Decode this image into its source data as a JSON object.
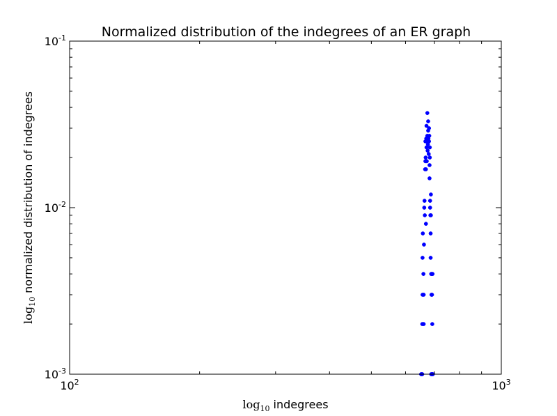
{
  "chart_data": {
    "type": "scatter",
    "title": "Normalized distribution of the indegrees of an ER graph",
    "xlabel": {
      "prefix": "log",
      "subscript": "10",
      "text": " indegrees"
    },
    "ylabel": {
      "prefix": "log",
      "subscript": "10",
      "text": " normalized distribution of indegrees"
    },
    "xscale": "log",
    "yscale": "log",
    "xlim": [
      100,
      1000
    ],
    "ylim": [
      0.001,
      0.1
    ],
    "xticks": [
      {
        "value": 100,
        "base": "10",
        "exp": "2"
      },
      {
        "value": 1000,
        "base": "10",
        "exp": "3"
      }
    ],
    "yticks": [
      {
        "value": 0.001,
        "base": "10",
        "exp": "-3"
      },
      {
        "value": 0.01,
        "base": "10",
        "exp": "-2"
      },
      {
        "value": 0.1,
        "base": "10",
        "exp": "-1"
      }
    ],
    "grid": false,
    "marker_color": "#0000ff",
    "points": [
      [
        656,
        0.002
      ],
      [
        657,
        0.003
      ],
      [
        657,
        0.005
      ],
      [
        658,
        0.007
      ],
      [
        660,
        0.004
      ],
      [
        661,
        0.003
      ],
      [
        661,
        0.002
      ],
      [
        662,
        0.006
      ],
      [
        663,
        0.01
      ],
      [
        664,
        0.011
      ],
      [
        665,
        0.009
      ],
      [
        666,
        0.017
      ],
      [
        667,
        0.019
      ],
      [
        667,
        0.025
      ],
      [
        668,
        0.02
      ],
      [
        669,
        0.008
      ],
      [
        669,
        0.017
      ],
      [
        670,
        0.026
      ],
      [
        671,
        0.031
      ],
      [
        671,
        0.023
      ],
      [
        672,
        0.019
      ],
      [
        673,
        0.025
      ],
      [
        674,
        0.037
      ],
      [
        674,
        0.027
      ],
      [
        675,
        0.022
      ],
      [
        676,
        0.024
      ],
      [
        677,
        0.033
      ],
      [
        677,
        0.029
      ],
      [
        678,
        0.026
      ],
      [
        679,
        0.021
      ],
      [
        680,
        0.03
      ],
      [
        680,
        0.025
      ],
      [
        681,
        0.027
      ],
      [
        682,
        0.018
      ],
      [
        682,
        0.015
      ],
      [
        683,
        0.023
      ],
      [
        683,
        0.02
      ],
      [
        684,
        0.011
      ],
      [
        684,
        0.01
      ],
      [
        685,
        0.009
      ],
      [
        686,
        0.007
      ],
      [
        686,
        0.005
      ],
      [
        687,
        0.012
      ],
      [
        687,
        0.009
      ],
      [
        688,
        0.004
      ],
      [
        689,
        0.003
      ],
      [
        690,
        0.004
      ],
      [
        691,
        0.003
      ],
      [
        692,
        0.002
      ],
      [
        693,
        0.004
      ],
      [
        652,
        0.001
      ],
      [
        654,
        0.001
      ],
      [
        656,
        0.001
      ],
      [
        688,
        0.001
      ],
      [
        690,
        0.001
      ],
      [
        692,
        0.001
      ],
      [
        694,
        0.001
      ]
    ]
  }
}
